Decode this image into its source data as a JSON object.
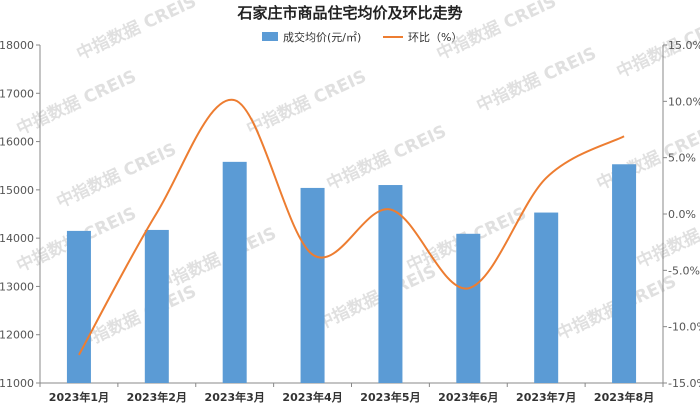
{
  "chart_data": {
    "type": "bar",
    "title": "石家庄市商品住宅均价及环比走势",
    "categories": [
      "2023年1月",
      "2023年2月",
      "2023年3月",
      "2023年4月",
      "2023年5月",
      "2023年6月",
      "2023年7月",
      "2023年8月"
    ],
    "series": [
      {
        "name": "成交均价(元/㎡)",
        "type": "bar",
        "axis": "left",
        "color": "#5b9bd5",
        "values": [
          14150,
          14170,
          15580,
          15040,
          15100,
          14090,
          14530,
          15530
        ]
      },
      {
        "name": "环比（%）",
        "type": "line",
        "axis": "right",
        "color": "#ed7d31",
        "values": [
          -12.5,
          0.1,
          10.1,
          -3.6,
          0.4,
          -6.6,
          3.2,
          6.9
        ]
      }
    ],
    "left_axis": {
      "ylim": [
        11000,
        18000
      ],
      "ticks": [
        "11000",
        "12000",
        "13000",
        "14000",
        "15000",
        "16000",
        "17000",
        "18000"
      ]
    },
    "right_axis": {
      "ylim": [
        -15,
        15
      ],
      "ticks": [
        "-15.0%",
        "-10.0%",
        "-5.0%",
        "0.0%",
        "5.0%",
        "10.0%",
        "15.0%"
      ]
    },
    "legend_position": "top",
    "grid": false,
    "watermark": "中指数据 CREIS"
  }
}
